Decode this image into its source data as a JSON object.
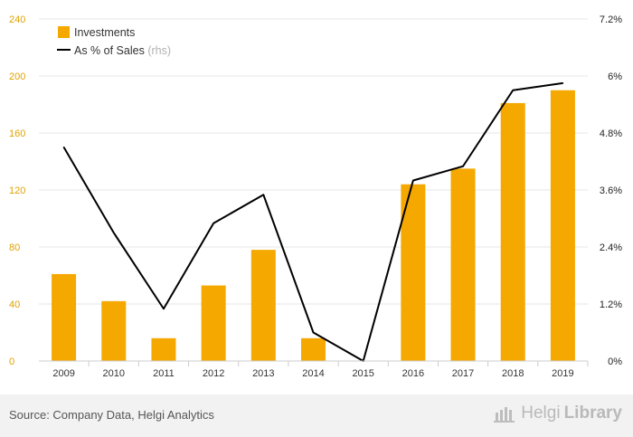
{
  "chart_data": {
    "type": "bar+line",
    "categories": [
      "2009",
      "2010",
      "2011",
      "2012",
      "2013",
      "2014",
      "2015",
      "2016",
      "2017",
      "2018",
      "2019"
    ],
    "series": [
      {
        "name": "Investments",
        "type": "bar",
        "axis": "left",
        "color": "#f5a800",
        "values": [
          61,
          42,
          16,
          53,
          78,
          16,
          0,
          124,
          135,
          181,
          190
        ]
      },
      {
        "name": "As % of Sales",
        "suffix": "(rhs)",
        "type": "line",
        "axis": "right",
        "color": "#000000",
        "values": [
          4.5,
          2.7,
          1.1,
          2.9,
          3.5,
          0.6,
          0.0,
          3.8,
          4.1,
          5.7,
          5.85
        ]
      }
    ],
    "y_left": {
      "ylim": [
        0,
        240
      ],
      "ticks": [
        "0",
        "40",
        "80",
        "120",
        "160",
        "200",
        "240"
      ]
    },
    "y_right": {
      "ylim": [
        0,
        7.2
      ],
      "ticks": [
        "0%",
        "1.2%",
        "2.4%",
        "3.6%",
        "4.8%",
        "6%",
        "7.2%"
      ]
    },
    "grid": true,
    "legend_position": "top-left"
  },
  "footer": {
    "source": "Source: Company Data, Helgi Analytics",
    "brand_a": "Helgi",
    "brand_b": "Library"
  },
  "colors": {
    "left_tick_color": "#e0a200",
    "grid_color": "#e6e6e6",
    "footer_bg": "#f2f2f2"
  }
}
